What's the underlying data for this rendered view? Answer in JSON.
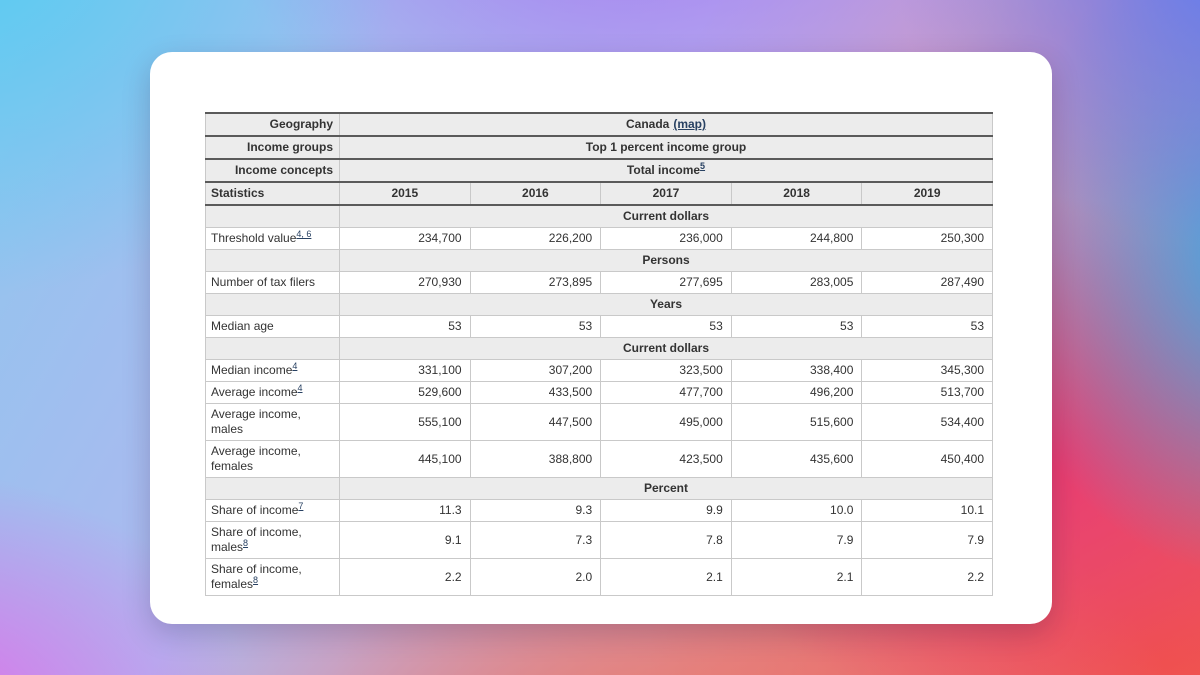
{
  "colors": {
    "link": "#284162",
    "header_bg": "#ececec",
    "border_dark": "#5a5a5a",
    "border_light": "#c9c9c9",
    "text": "#333333",
    "card_bg": "#ffffff"
  },
  "header": {
    "geography_label": "Geography",
    "geography_value": "Canada",
    "map_link": "(map)",
    "income_groups_label": "Income groups",
    "income_groups_value": "Top 1 percent income group",
    "income_concepts_label": "Income concepts",
    "income_concepts_value": "Total income",
    "income_concepts_sup": "5",
    "statistics_label": "Statistics",
    "years": [
      "2015",
      "2016",
      "2017",
      "2018",
      "2019"
    ]
  },
  "table": {
    "rows": [
      {
        "type": "section",
        "label": "Current dollars"
      },
      {
        "type": "data",
        "label": "Threshold value",
        "sup": "4, 6",
        "values": [
          "234,700",
          "226,200",
          "236,000",
          "244,800",
          "250,300"
        ]
      },
      {
        "type": "section",
        "label": "Persons"
      },
      {
        "type": "data",
        "label": "Number of tax filers",
        "values": [
          "270,930",
          "273,895",
          "277,695",
          "283,005",
          "287,490"
        ]
      },
      {
        "type": "section",
        "label": "Years"
      },
      {
        "type": "data",
        "label": "Median age",
        "values": [
          "53",
          "53",
          "53",
          "53",
          "53"
        ]
      },
      {
        "type": "section",
        "label": "Current dollars"
      },
      {
        "type": "data",
        "label": "Median income",
        "sup": "4",
        "values": [
          "331,100",
          "307,200",
          "323,500",
          "338,400",
          "345,300"
        ]
      },
      {
        "type": "data",
        "label": "Average income",
        "sup": "4",
        "values": [
          "529,600",
          "433,500",
          "477,700",
          "496,200",
          "513,700"
        ]
      },
      {
        "type": "data",
        "label": "Average income, males",
        "values": [
          "555,100",
          "447,500",
          "495,000",
          "515,600",
          "534,400"
        ]
      },
      {
        "type": "data",
        "label": "Average income, females",
        "values": [
          "445,100",
          "388,800",
          "423,500",
          "435,600",
          "450,400"
        ]
      },
      {
        "type": "section",
        "label": "Percent"
      },
      {
        "type": "data",
        "label": "Share of income",
        "sup": "7",
        "values": [
          "11.3",
          "9.3",
          "9.9",
          "10.0",
          "10.1"
        ]
      },
      {
        "type": "data",
        "label": "Share of income, males",
        "sup": "8",
        "values": [
          "9.1",
          "7.3",
          "7.8",
          "7.9",
          "7.9"
        ]
      },
      {
        "type": "data",
        "label": "Share of income, females",
        "sup": "8",
        "values": [
          "2.2",
          "2.0",
          "2.1",
          "2.1",
          "2.2"
        ]
      }
    ]
  }
}
